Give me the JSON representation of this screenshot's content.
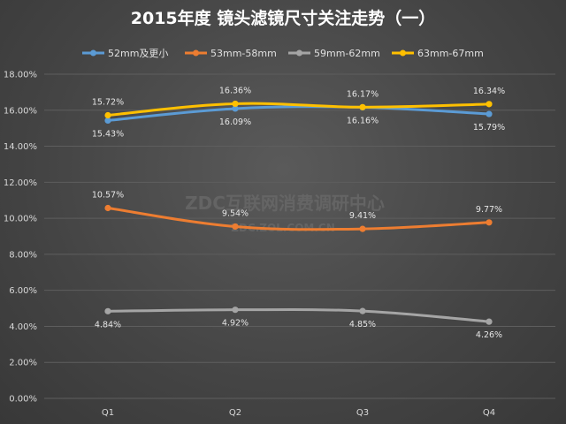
{
  "watermark": {
    "main": "ZDC互联网消费调研中心",
    "sub": "ZDC.ZOL.COM.CN"
  },
  "chart_data": {
    "type": "line",
    "title": "2015年度 镜头滤镜尺寸关注走势（一）",
    "categories": [
      "Q1",
      "Q2",
      "Q3",
      "Q4"
    ],
    "ylim": [
      0,
      18
    ],
    "yticks": [
      "0.00%",
      "2.00%",
      "4.00%",
      "6.00%",
      "8.00%",
      "10.00%",
      "12.00%",
      "14.00%",
      "16.00%",
      "18.00%"
    ],
    "grid": true,
    "legend_position": "top",
    "series": [
      {
        "name": "52mm及更小",
        "color": "#5b9bd5",
        "values": [
          15.43,
          16.09,
          16.16,
          15.79
        ],
        "labels": [
          "15.43%",
          "16.09%",
          "16.16%",
          "15.79%"
        ]
      },
      {
        "name": "53mm-58mm",
        "color": "#ed7d31",
        "values": [
          10.57,
          9.54,
          9.41,
          9.77
        ],
        "labels": [
          "10.57%",
          "9.54%",
          "9.41%",
          "9.77%"
        ]
      },
      {
        "name": "59mm-62mm",
        "color": "#a5a5a5",
        "values": [
          4.84,
          4.92,
          4.85,
          4.26
        ],
        "labels": [
          "4.84%",
          "4.92%",
          "4.85%",
          "4.26%"
        ]
      },
      {
        "name": "63mm-67mm",
        "color": "#ffc000",
        "values": [
          15.72,
          16.36,
          16.17,
          16.34
        ],
        "labels": [
          "15.72%",
          "16.36%",
          "16.17%",
          "16.34%"
        ]
      }
    ]
  }
}
